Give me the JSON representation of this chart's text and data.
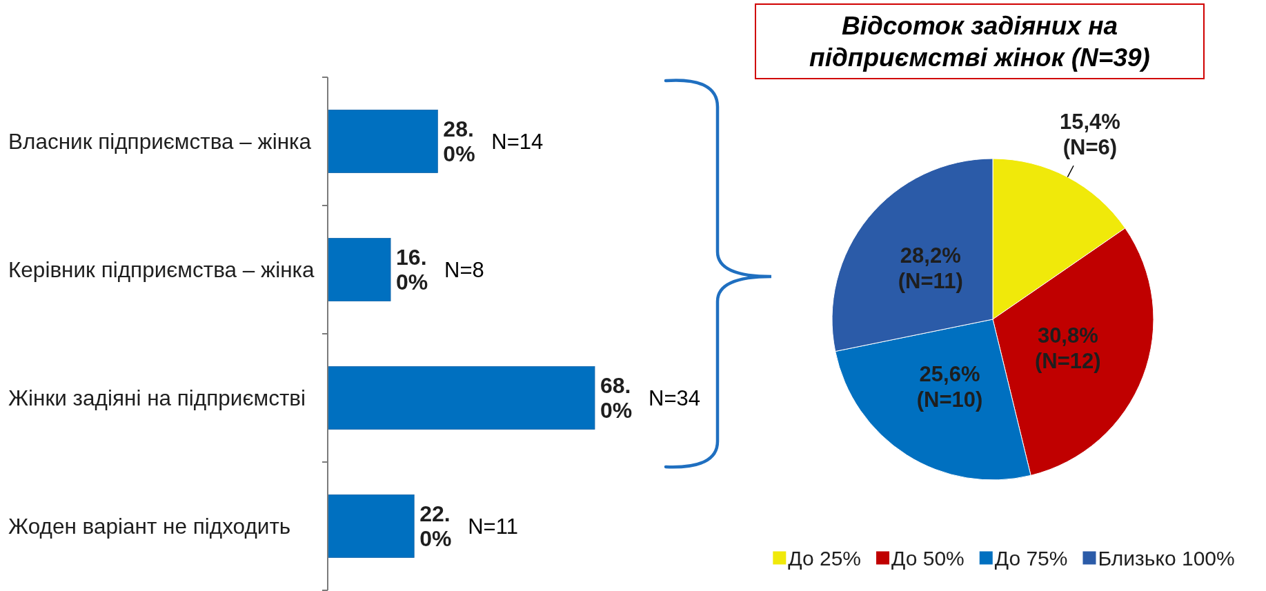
{
  "chart_data": [
    {
      "type": "bar",
      "orientation": "horizontal",
      "categories": [
        "Власник підприємства – жінка",
        "Керівник підприємства – жінка",
        "Жінки задіяні на підприємстві",
        "Жоден варіант не підходить"
      ],
      "values": [
        28.0,
        16.0,
        68.0,
        22.0
      ],
      "color": "#0070c0",
      "value_labels": [
        "28.0%",
        "16.0%",
        "68.0%",
        "22.0%"
      ],
      "annotations": [
        "N=14",
        "N=8",
        "N=34",
        "N=11"
      ]
    },
    {
      "type": "pie",
      "title": "Відсоток задіяних на підприємстві жінок (N=39)",
      "categories": [
        "До 25%",
        "До 50%",
        "До 75%",
        "Близько 100%"
      ],
      "values": [
        15.4,
        30.8,
        25.6,
        28.2
      ],
      "colors": [
        "#f0e90a",
        "#c00000",
        "#0070c0",
        "#2b5ba8"
      ],
      "value_labels": [
        "15,4% (N=6)",
        "30,8% (N=12)",
        "25,6% (N=10)",
        "28,2% (N=11)"
      ],
      "legend": "bottom"
    }
  ]
}
